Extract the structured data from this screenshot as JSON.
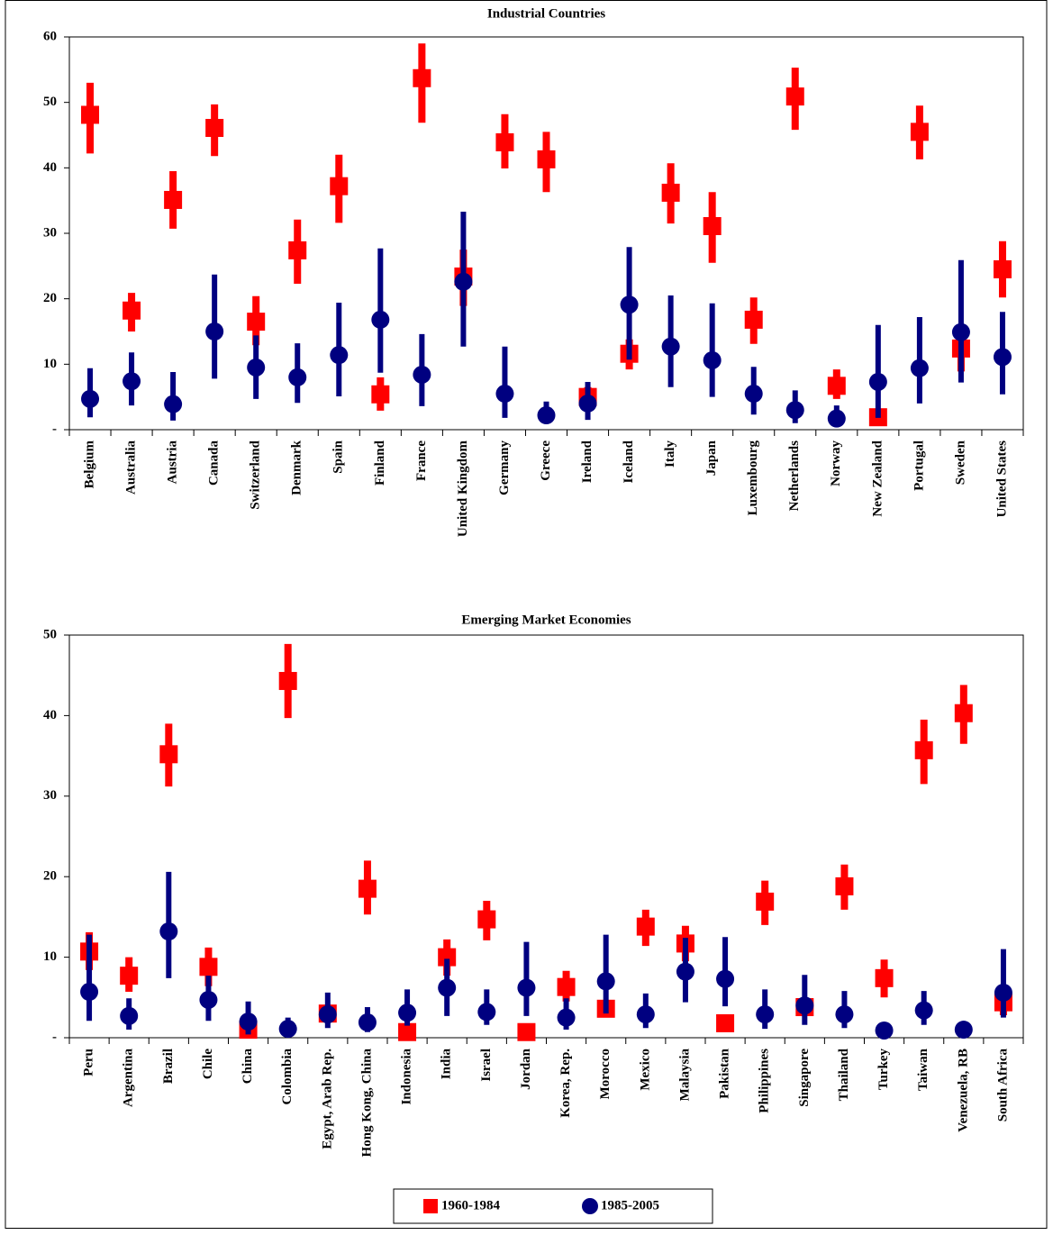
{
  "chart_data": [
    {
      "type": "errorbar",
      "title": "Industrial Countries",
      "categories": [
        "Belgium",
        "Australia",
        "Austria",
        "Canada",
        "Switzerland",
        "Denmark",
        "Spain",
        "Finland",
        "France",
        "United Kingdom",
        "Germany",
        "Greece",
        "Ireland",
        "Iceland",
        "Italy",
        "Japan",
        "Luxembourg",
        "Netherlands",
        "Norway",
        "New Zealand",
        "Portugal",
        "Sweden",
        "United States"
      ],
      "ylim": [
        0,
        60
      ],
      "yticks": [
        {
          "value": 0,
          "label": "-"
        },
        10,
        20,
        30,
        40,
        50,
        60
      ],
      "series": [
        {
          "color": "#ff0000",
          "marker": "square",
          "values": [
            48.1,
            18.2,
            35.1,
            46.1,
            16.5,
            27.4,
            37.2,
            5.4,
            53.7,
            23.4,
            43.9,
            41.3,
            5.0,
            11.6,
            36.2,
            31.1,
            16.8,
            50.9,
            6.7,
            1.9,
            45.5,
            12.4,
            24.5
          ],
          "lower": [
            42.2,
            15.0,
            30.7,
            41.8,
            12.9,
            22.3,
            31.6,
            2.9,
            46.9,
            18.9,
            39.9,
            36.3,
            3.4,
            9.2,
            31.5,
            25.5,
            13.1,
            45.8,
            4.7,
            1.8,
            41.3,
            8.9,
            20.2
          ],
          "upper": [
            53.0,
            20.9,
            39.5,
            49.7,
            20.4,
            32.1,
            42.0,
            8.0,
            59.0,
            27.5,
            48.2,
            45.5,
            6.5,
            13.8,
            40.7,
            36.3,
            20.2,
            55.3,
            9.2,
            2.0,
            49.5,
            15.4,
            28.8
          ]
        },
        {
          "color": "#000080",
          "marker": "circle",
          "values": [
            4.7,
            7.4,
            3.9,
            15.0,
            9.5,
            8.0,
            11.4,
            16.8,
            8.4,
            22.6,
            5.5,
            2.2,
            4.0,
            19.1,
            12.7,
            10.6,
            5.5,
            3.0,
            1.7,
            7.3,
            9.4,
            14.9,
            11.1
          ],
          "lower": [
            1.9,
            3.7,
            1.4,
            7.8,
            4.7,
            4.1,
            5.1,
            8.7,
            3.6,
            12.7,
            1.8,
            1.4,
            1.5,
            10.7,
            6.5,
            5.0,
            2.3,
            1.0,
            0.7,
            1.8,
            4.0,
            7.2,
            5.4
          ],
          "upper": [
            9.4,
            11.8,
            8.8,
            23.7,
            14.4,
            13.2,
            19.4,
            27.7,
            14.6,
            33.3,
            12.7,
            4.3,
            7.3,
            27.9,
            20.5,
            19.3,
            9.6,
            6.0,
            3.7,
            16.0,
            17.2,
            25.9,
            18.0
          ]
        }
      ]
    },
    {
      "type": "errorbar",
      "title": "Emerging Market Economies",
      "categories": [
        "Peru",
        "Argentina",
        "Brazil",
        "Chile",
        "China",
        "Colombia",
        "Egypt, Arab Rep.",
        "Hong Kong, China",
        "Indonesia",
        "India",
        "Israel",
        "Jordan",
        "Korea, Rep.",
        "Morocco",
        "Mexico",
        "Malaysia",
        "Pakistan",
        "Philippines",
        "Singapore",
        "Thailand",
        "Turkey",
        "Taiwan",
        "Venezuela, RB",
        "South Africa"
      ],
      "ylim": [
        0,
        50
      ],
      "yticks": [
        {
          "value": 0,
          "label": "-"
        },
        10,
        20,
        30,
        40,
        50
      ],
      "legend": "bottom",
      "series": [
        {
          "name": "1960-1984",
          "color": "#ff0000",
          "marker": "square",
          "values": [
            10.7,
            7.7,
            35.2,
            8.8,
            1.0,
            44.3,
            3.0,
            18.5,
            0.7,
            10.0,
            14.7,
            0.7,
            6.3,
            3.6,
            13.8,
            11.7,
            1.8,
            16.9,
            3.8,
            18.8,
            7.4,
            35.7,
            40.3,
            4.4
          ],
          "lower": [
            8.4,
            5.7,
            31.2,
            6.4,
            0.6,
            39.7,
            2.1,
            15.3,
            0.6,
            7.7,
            12.1,
            0.6,
            4.5,
            2.8,
            11.4,
            9.5,
            1.0,
            14.0,
            2.7,
            15.9,
            5.0,
            31.5,
            36.5,
            2.8
          ],
          "upper": [
            13.1,
            10.0,
            39.0,
            11.2,
            1.6,
            48.9,
            3.9,
            22.0,
            0.8,
            12.2,
            17.0,
            0.8,
            8.3,
            4.5,
            15.9,
            13.9,
            2.7,
            19.5,
            4.9,
            21.5,
            9.7,
            39.5,
            43.8,
            6.3
          ]
        },
        {
          "name": "1985-2005",
          "color": "#000080",
          "marker": "circle",
          "values": [
            5.7,
            2.7,
            13.2,
            4.7,
            2.0,
            1.1,
            2.9,
            1.9,
            3.1,
            6.2,
            3.2,
            6.2,
            2.5,
            7.0,
            2.9,
            8.2,
            7.3,
            2.9,
            4.0,
            2.9,
            0.9,
            3.4,
            1.0,
            5.6
          ],
          "lower": [
            2.1,
            1.0,
            7.4,
            2.1,
            0.4,
            0.4,
            1.2,
            0.7,
            1.5,
            2.7,
            1.6,
            2.7,
            1.0,
            3.0,
            1.2,
            4.4,
            3.9,
            1.1,
            1.6,
            1.2,
            0.6,
            1.6,
            0.4,
            2.5
          ],
          "upper": [
            12.8,
            4.9,
            20.6,
            7.7,
            4.5,
            2.5,
            5.6,
            3.8,
            6.0,
            9.8,
            6.0,
            11.9,
            4.9,
            12.8,
            5.5,
            12.4,
            12.5,
            6.0,
            7.8,
            5.8,
            1.1,
            5.8,
            1.9,
            11.0
          ]
        }
      ]
    }
  ]
}
